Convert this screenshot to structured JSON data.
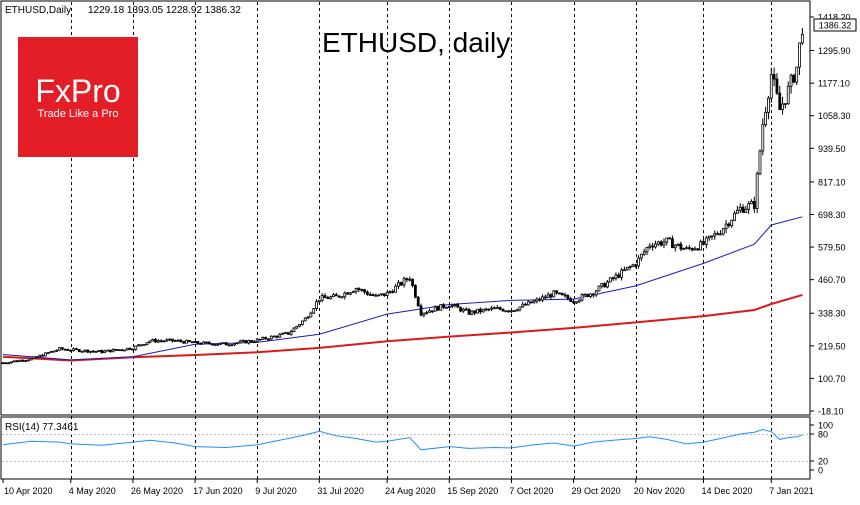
{
  "header": {
    "symbol": "ETHUSD,Daily",
    "ohlc": "1229.18 1393.05 1228.92 1386.32"
  },
  "chart_title": "ETHUSD, daily",
  "logo": {
    "brand": "FxPro",
    "tagline": "Trade Like a Pro",
    "color": "#e41e26"
  },
  "colors": {
    "candle": "#000000",
    "ma_short": "#1b1bbf",
    "ma_long": "#d81b1b",
    "rsi": "#1e90ff",
    "price_tag_bg": "#ffffff",
    "grid_vertical": "#000000"
  },
  "chart_data": [
    {
      "type": "candlestick",
      "y_ticks": [
        "1418.20",
        "1295.90",
        "1177.10",
        "1058.30",
        "939.50",
        "817.10",
        "698.30",
        "579.50",
        "460.70",
        "338.30",
        "219.50",
        "100.70",
        "-18.10"
      ],
      "ylim": [
        -18.1,
        1418.2
      ],
      "last_price": "1386.32",
      "x_ticks": [
        "10 Apr 2020",
        "4 May 2020",
        "26 May 2020",
        "17 Jun 2020",
        "9 Jul 2020",
        "31 Jul 2020",
        "24 Aug 2020",
        "15 Sep 2020",
        "7 Oct 2020",
        "29 Oct 2020",
        "20 Nov 2020",
        "14 Dec 2020",
        "7 Jan 2021"
      ],
      "vertical_gridlines_at": [
        "4 May 2020",
        "26 May 2020",
        "17 Jun 2020",
        "9 Jul 2020",
        "31 Jul 2020",
        "24 Aug 2020",
        "15 Sep 2020",
        "7 Oct 2020",
        "29 Oct 2020",
        "20 Nov 2020",
        "14 Dec 2020",
        "7 Jan 2021"
      ],
      "close_series": [
        {
          "date": "10 Apr 2020",
          "close": 158
        },
        {
          "date": "20 Apr 2020",
          "close": 172
        },
        {
          "date": "30 Apr 2020",
          "close": 208
        },
        {
          "date": "4 May 2020",
          "close": 205
        },
        {
          "date": "15 May 2020",
          "close": 198
        },
        {
          "date": "26 May 2020",
          "close": 212
        },
        {
          "date": "1 Jun 2020",
          "close": 238
        },
        {
          "date": "10 Jun 2020",
          "close": 238
        },
        {
          "date": "17 Jun 2020",
          "close": 230
        },
        {
          "date": "28 Jun 2020",
          "close": 226
        },
        {
          "date": "9 Jul 2020",
          "close": 240
        },
        {
          "date": "20 Jul 2020",
          "close": 265
        },
        {
          "date": "26 Jul 2020",
          "close": 318
        },
        {
          "date": "31 Jul 2020",
          "close": 392
        },
        {
          "date": "6 Aug 2020",
          "close": 398
        },
        {
          "date": "13 Aug 2020",
          "close": 430
        },
        {
          "date": "20 Aug 2020",
          "close": 398
        },
        {
          "date": "24 Aug 2020",
          "close": 410
        },
        {
          "date": "1 Sep 2020",
          "close": 470
        },
        {
          "date": "5 Sep 2020",
          "close": 340
        },
        {
          "date": "15 Sep 2020",
          "close": 370
        },
        {
          "date": "22 Sep 2020",
          "close": 340
        },
        {
          "date": "1 Oct 2020",
          "close": 355
        },
        {
          "date": "7 Oct 2020",
          "close": 350
        },
        {
          "date": "15 Oct 2020",
          "close": 380
        },
        {
          "date": "22 Oct 2020",
          "close": 410
        },
        {
          "date": "29 Oct 2020",
          "close": 385
        },
        {
          "date": "5 Nov 2020",
          "close": 415
        },
        {
          "date": "12 Nov 2020",
          "close": 465
        },
        {
          "date": "20 Nov 2020",
          "close": 520
        },
        {
          "date": "25 Nov 2020",
          "close": 590
        },
        {
          "date": "1 Dec 2020",
          "close": 600
        },
        {
          "date": "8 Dec 2020",
          "close": 570
        },
        {
          "date": "14 Dec 2020",
          "close": 590
        },
        {
          "date": "20 Dec 2020",
          "close": 640
        },
        {
          "date": "27 Dec 2020",
          "close": 720
        },
        {
          "date": "1 Jan 2021",
          "close": 735
        },
        {
          "date": "4 Jan 2021",
          "close": 1030
        },
        {
          "date": "7 Jan 2021",
          "close": 1210
        },
        {
          "date": "10 Jan 2021",
          "close": 1080
        },
        {
          "date": "13 Jan 2021",
          "close": 1150
        },
        {
          "date": "16 Jan 2021",
          "close": 1235
        },
        {
          "date": "18 Jan 2021",
          "close": 1386.32
        }
      ],
      "ma_short_series": [
        {
          "date": "10 Apr 2020",
          "value": 188
        },
        {
          "date": "4 May 2020",
          "value": 168
        },
        {
          "date": "26 May 2020",
          "value": 180
        },
        {
          "date": "17 Jun 2020",
          "value": 225
        },
        {
          "date": "9 Jul 2020",
          "value": 232
        },
        {
          "date": "31 Jul 2020",
          "value": 262
        },
        {
          "date": "24 Aug 2020",
          "value": 335
        },
        {
          "date": "15 Sep 2020",
          "value": 370
        },
        {
          "date": "7 Oct 2020",
          "value": 385
        },
        {
          "date": "29 Oct 2020",
          "value": 390
        },
        {
          "date": "20 Nov 2020",
          "value": 438
        },
        {
          "date": "14 Dec 2020",
          "value": 520
        },
        {
          "date": "1 Jan 2021",
          "value": 590
        },
        {
          "date": "7 Jan 2021",
          "value": 660
        },
        {
          "date": "18 Jan 2021",
          "value": 690
        }
      ],
      "ma_long_series": [
        {
          "date": "10 Apr 2020",
          "value": 180
        },
        {
          "date": "4 May 2020",
          "value": 166
        },
        {
          "date": "26 May 2020",
          "value": 178
        },
        {
          "date": "17 Jun 2020",
          "value": 186
        },
        {
          "date": "9 Jul 2020",
          "value": 196
        },
        {
          "date": "31 Jul 2020",
          "value": 212
        },
        {
          "date": "24 Aug 2020",
          "value": 236
        },
        {
          "date": "15 Sep 2020",
          "value": 253
        },
        {
          "date": "7 Oct 2020",
          "value": 268
        },
        {
          "date": "29 Oct 2020",
          "value": 285
        },
        {
          "date": "20 Nov 2020",
          "value": 305
        },
        {
          "date": "14 Dec 2020",
          "value": 328
        },
        {
          "date": "1 Jan 2021",
          "value": 350
        },
        {
          "date": "7 Jan 2021",
          "value": 372
        },
        {
          "date": "18 Jan 2021",
          "value": 405
        }
      ]
    },
    {
      "type": "line",
      "label": "RSI(14) 77.3461",
      "y_ticks": [
        "100",
        "80",
        "20",
        "0"
      ],
      "ylim": [
        0,
        100
      ],
      "x_ticks": [
        "10 Apr 2020",
        "4 May 2020",
        "26 May 2020",
        "17 Jun 2020",
        "9 Jul 2020",
        "31 Jul 2020",
        "24 Aug 2020",
        "15 Sep 2020",
        "7 Oct 2020",
        "29 Oct 2020",
        "20 Nov 2020",
        "14 Dec 2020",
        "7 Jan 2021"
      ],
      "series": [
        {
          "date": "10 Apr 2020",
          "value": 56
        },
        {
          "date": "20 Apr 2020",
          "value": 64
        },
        {
          "date": "30 Apr 2020",
          "value": 62
        },
        {
          "date": "4 May 2020",
          "value": 58
        },
        {
          "date": "15 May 2020",
          "value": 55
        },
        {
          "date": "26 May 2020",
          "value": 62
        },
        {
          "date": "1 Jun 2020",
          "value": 66
        },
        {
          "date": "10 Jun 2020",
          "value": 60
        },
        {
          "date": "17 Jun 2020",
          "value": 52
        },
        {
          "date": "28 Jun 2020",
          "value": 50
        },
        {
          "date": "9 Jul 2020",
          "value": 56
        },
        {
          "date": "20 Jul 2020",
          "value": 70
        },
        {
          "date": "26 Jul 2020",
          "value": 78
        },
        {
          "date": "31 Jul 2020",
          "value": 86
        },
        {
          "date": "6 Aug 2020",
          "value": 76
        },
        {
          "date": "13 Aug 2020",
          "value": 70
        },
        {
          "date": "20 Aug 2020",
          "value": 62
        },
        {
          "date": "24 Aug 2020",
          "value": 64
        },
        {
          "date": "1 Sep 2020",
          "value": 72
        },
        {
          "date": "5 Sep 2020",
          "value": 45
        },
        {
          "date": "15 Sep 2020",
          "value": 52
        },
        {
          "date": "22 Sep 2020",
          "value": 48
        },
        {
          "date": "1 Oct 2020",
          "value": 50
        },
        {
          "date": "7 Oct 2020",
          "value": 49
        },
        {
          "date": "15 Oct 2020",
          "value": 56
        },
        {
          "date": "22 Oct 2020",
          "value": 60
        },
        {
          "date": "29 Oct 2020",
          "value": 53
        },
        {
          "date": "5 Nov 2020",
          "value": 62
        },
        {
          "date": "12 Nov 2020",
          "value": 66
        },
        {
          "date": "20 Nov 2020",
          "value": 70
        },
        {
          "date": "25 Nov 2020",
          "value": 74
        },
        {
          "date": "1 Dec 2020",
          "value": 68
        },
        {
          "date": "8 Dec 2020",
          "value": 58
        },
        {
          "date": "14 Dec 2020",
          "value": 62
        },
        {
          "date": "20 Dec 2020",
          "value": 70
        },
        {
          "date": "27 Dec 2020",
          "value": 80
        },
        {
          "date": "1 Jan 2021",
          "value": 84
        },
        {
          "date": "4 Jan 2021",
          "value": 90
        },
        {
          "date": "7 Jan 2021",
          "value": 85
        },
        {
          "date": "10 Jan 2021",
          "value": 68
        },
        {
          "date": "13 Jan 2021",
          "value": 72
        },
        {
          "date": "16 Jan 2021",
          "value": 74
        },
        {
          "date": "18 Jan 2021",
          "value": 77.3461
        }
      ]
    }
  ]
}
